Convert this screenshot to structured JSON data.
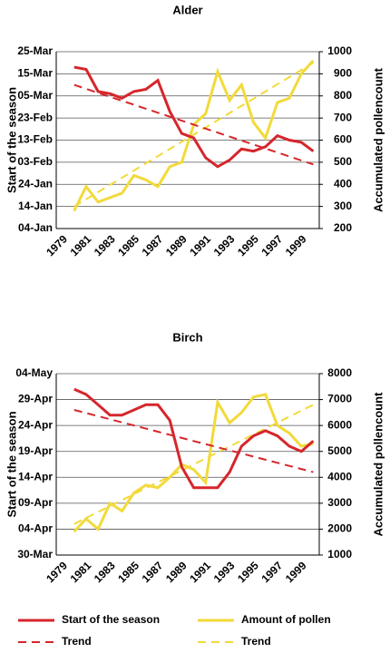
{
  "chart_data": [
    {
      "type": "line",
      "title": "Alder",
      "y_label": "Start of the season",
      "y2_label": "Accumulated pollencount",
      "categories": [
        "1979",
        null,
        "1981",
        null,
        "1983",
        null,
        "1985",
        null,
        "1987",
        null,
        "1989",
        null,
        "1991",
        null,
        "1993",
        null,
        "1995",
        null,
        "1997",
        null,
        "1999",
        null
      ],
      "ylim": [
        4,
        84
      ],
      "yticks": [
        {
          "value": 4,
          "label": "04-Jan"
        },
        {
          "value": 14,
          "label": "14-Jan"
        },
        {
          "value": 24,
          "label": "24-Jan"
        },
        {
          "value": 34,
          "label": "03-Feb"
        },
        {
          "value": 44,
          "label": "13-Feb"
        },
        {
          "value": 54,
          "label": "23-Feb"
        },
        {
          "value": 64,
          "label": "05-Mar"
        },
        {
          "value": 74,
          "label": "15-Mar"
        },
        {
          "value": 84,
          "label": "25-Mar"
        }
      ],
      "y2lim": [
        200,
        1000
      ],
      "y2ticks": [
        200,
        300,
        400,
        500,
        600,
        700,
        800,
        900,
        1000
      ],
      "grid": true,
      "series": [
        {
          "color": "#f2da3a",
          "axis": "y2",
          "dash": false,
          "values": [
            null,
            280,
            390,
            320,
            340,
            360,
            440,
            420,
            390,
            480,
            500,
            670,
            720,
            910,
            780,
            850,
            680,
            610,
            770,
            790,
            900,
            960
          ]
        },
        {
          "color": "#f2da3a",
          "axis": "y2",
          "dash": true,
          "values": [
            null,
            300,
            332.5,
            365,
            397.5,
            430,
            462.5,
            495,
            527.5,
            560,
            592.5,
            625,
            657.5,
            690,
            722.5,
            755,
            787.5,
            820,
            852.5,
            885,
            917.5,
            950
          ]
        },
        {
          "color": "#d6262c",
          "axis": "y",
          "dash": false,
          "values": [
            null,
            77,
            76,
            66,
            65,
            63,
            66,
            67,
            71,
            57,
            47,
            45,
            36,
            32,
            35,
            40,
            39,
            41,
            46,
            44,
            43,
            39
          ]
        },
        {
          "color": "#d6262c",
          "axis": "y",
          "dash": true,
          "values": [
            null,
            69,
            67.2,
            65.4,
            63.6,
            61.8,
            60,
            58.2,
            56.4,
            54.6,
            52.8,
            51,
            49.2,
            47.4,
            45.6,
            43.8,
            42,
            40.2,
            38.4,
            36.6,
            34.8,
            33
          ]
        }
      ]
    },
    {
      "type": "line",
      "title": "Birch",
      "y_label": "Start of the season",
      "y2_label": "Accumulated pollencount",
      "categories": [
        "1979",
        null,
        "1981",
        null,
        "1983",
        null,
        "1985",
        null,
        "1987",
        null,
        "1989",
        null,
        "1991",
        null,
        "1993",
        null,
        "1995",
        null,
        "1997",
        null,
        "1999",
        null
      ],
      "ylim": [
        89,
        124
      ],
      "yticks": [
        {
          "value": 89,
          "label": "30-Mar"
        },
        {
          "value": 94,
          "label": "04-Apr"
        },
        {
          "value": 99,
          "label": "09-Apr"
        },
        {
          "value": 104,
          "label": "14-Apr"
        },
        {
          "value": 109,
          "label": "19-Apr"
        },
        {
          "value": 114,
          "label": "24-Apr"
        },
        {
          "value": 119,
          "label": "29-Apr"
        },
        {
          "value": 124,
          "label": "04-May"
        }
      ],
      "y2lim": [
        1000,
        8000
      ],
      "y2ticks": [
        1000,
        2000,
        3000,
        4000,
        5000,
        6000,
        7000,
        8000
      ],
      "grid": true,
      "series": [
        {
          "name": "Amount of pollen",
          "color": "#f2da3a",
          "axis": "y2",
          "dash": false,
          "values": [
            null,
            1900,
            2400,
            2000,
            3000,
            2700,
            3400,
            3700,
            3600,
            4000,
            4500,
            4300,
            3800,
            6900,
            6100,
            6500,
            7100,
            7200,
            6000,
            5700,
            5200,
            5300
          ]
        },
        {
          "name": "Trend",
          "color": "#f2da3a",
          "axis": "y2",
          "dash": true,
          "values": [
            null,
            2200,
            2430,
            2660,
            2890,
            3120,
            3350,
            3580,
            3810,
            4040,
            4270,
            4500,
            4730,
            4960,
            5190,
            5420,
            5650,
            5880,
            6110,
            6340,
            6570,
            6800
          ]
        },
        {
          "name": "Start of the season",
          "color": "#d6262c",
          "axis": "y",
          "dash": false,
          "values": [
            null,
            121,
            120,
            118,
            116,
            116,
            117,
            118,
            118,
            115,
            106,
            102,
            102,
            102,
            105,
            110,
            112,
            113,
            112,
            110,
            109,
            111
          ]
        },
        {
          "name": "Trend",
          "color": "#d6262c",
          "axis": "y",
          "dash": true,
          "values": [
            null,
            117,
            116.4,
            115.8,
            115.2,
            114.6,
            114,
            113.4,
            112.8,
            112.2,
            111.6,
            111,
            110.4,
            109.8,
            109.2,
            108.6,
            108,
            107.4,
            106.8,
            106.2,
            105.6,
            105
          ]
        }
      ]
    }
  ]
}
